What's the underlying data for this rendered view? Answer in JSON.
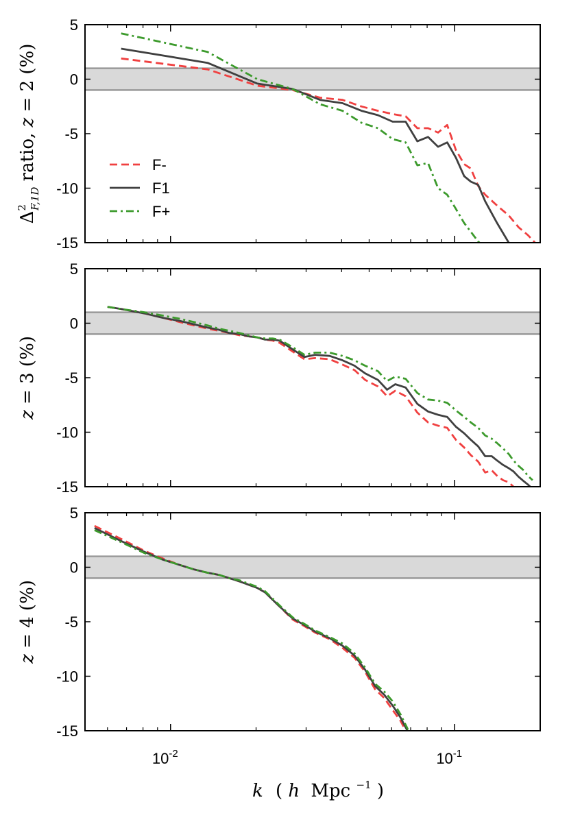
{
  "chart_data": {
    "type": "line",
    "xscale": "log",
    "xlim": [
      0.005,
      0.2
    ],
    "x_tick_labels": [
      {
        "value": 0.01,
        "base": "10",
        "exp": "-2"
      },
      {
        "value": 0.1,
        "base": "10",
        "exp": "-1"
      }
    ],
    "xlabel": {
      "k": "k",
      "paren_open": "(",
      "h": "h",
      "mpc": "Mpc",
      "exp": "−1",
      "paren_close": ")"
    },
    "band": [
      -1,
      1
    ],
    "band_color": "#d9d9d9",
    "band_edge_color": "#999999",
    "legend": {
      "position": "center-left (top panel)",
      "entries": [
        {
          "series": "F-",
          "label": "F-",
          "color": "#f04040",
          "dash": "dashed"
        },
        {
          "series": "F1",
          "label": "F1",
          "color": "#404040",
          "dash": "solid"
        },
        {
          "series": "F+",
          "label": "F+",
          "color": "#3c9a2c",
          "dash": "dashdot"
        }
      ]
    },
    "panels": [
      {
        "name": "z2",
        "ylim": [
          -15,
          5
        ],
        "y_ticks": [
          5,
          0,
          -5,
          -10,
          -15
        ],
        "y_tick_labels": [
          "5",
          "0",
          "-5",
          "-10",
          "-15"
        ],
        "ylabel": {
          "delta": "Δ",
          "sup": "2",
          "sub": "F,1D",
          "rest": " ratio, ",
          "z": "z",
          "eq": " = ",
          "zval": "2",
          "unit": "  (%)"
        },
        "series": [
          {
            "name": "F-",
            "color": "#f04040",
            "dash": "dashed",
            "x": [
              0.0067,
              0.0135,
              0.0202,
              0.0269,
              0.0336,
              0.0403,
              0.047,
              0.0537,
              0.0605,
              0.0672,
              0.0739,
              0.0806,
              0.0874,
              0.0941,
              0.101,
              0.108,
              0.114,
              0.121,
              0.128,
              0.141,
              0.155,
              0.168,
              0.181,
              0.195,
              0.2
            ],
            "values": [
              1.9,
              0.9,
              -0.6,
              -1.0,
              -1.7,
              -1.9,
              -2.5,
              -2.9,
              -3.2,
              -3.4,
              -4.5,
              -4.5,
              -4.9,
              -4.2,
              -6.5,
              -7.8,
              -8.2,
              -9.8,
              -10.6,
              -11.6,
              -12.5,
              -13.6,
              -14.3,
              -15.2,
              -15.5
            ]
          },
          {
            "name": "F1",
            "color": "#404040",
            "dash": "solid",
            "x": [
              0.0067,
              0.0135,
              0.0202,
              0.0269,
              0.0336,
              0.0403,
              0.047,
              0.0537,
              0.0605,
              0.0672,
              0.0739,
              0.0806,
              0.0874,
              0.0941,
              0.101,
              0.108,
              0.114,
              0.121,
              0.128,
              0.141,
              0.155,
              0.16
            ],
            "values": [
              2.8,
              1.5,
              -0.4,
              -0.9,
              -1.9,
              -2.2,
              -2.9,
              -3.3,
              -3.9,
              -3.9,
              -5.7,
              -5.3,
              -6.2,
              -5.8,
              -7.2,
              -8.9,
              -9.4,
              -9.7,
              -11.2,
              -13.2,
              -15.0,
              -15.5
            ]
          },
          {
            "name": "F+",
            "color": "#3c9a2c",
            "dash": "dashdot",
            "x": [
              0.0067,
              0.0135,
              0.0202,
              0.0269,
              0.0336,
              0.0403,
              0.047,
              0.0537,
              0.0605,
              0.0672,
              0.0739,
              0.0806,
              0.0874,
              0.0941,
              0.101,
              0.108,
              0.114,
              0.121,
              0.128,
              0.13
            ],
            "values": [
              4.2,
              2.5,
              0.0,
              -0.9,
              -2.3,
              -2.9,
              -4.0,
              -4.5,
              -5.5,
              -5.8,
              -7.9,
              -7.7,
              -10.0,
              -10.6,
              -11.9,
              -13.2,
              -14.0,
              -14.9,
              -15.4,
              -15.6
            ]
          }
        ]
      },
      {
        "name": "z3",
        "ylim": [
          -15,
          5
        ],
        "y_ticks": [
          5,
          0,
          -5,
          -10,
          -15
        ],
        "y_tick_labels": [
          "5",
          "0",
          "-5",
          "-10",
          "-15"
        ],
        "ylabel": {
          "z": "z",
          "eq": " = ",
          "zval": "3",
          "unit": "  (%)"
        },
        "series": [
          {
            "name": "F-",
            "color": "#f04040",
            "dash": "dashed",
            "x": [
              0.006,
              0.0067,
              0.0081,
              0.0094,
              0.0108,
              0.0121,
              0.0135,
              0.0148,
              0.0161,
              0.0175,
              0.0188,
              0.0202,
              0.0215,
              0.0229,
              0.0242,
              0.0269,
              0.0296,
              0.0323,
              0.0363,
              0.0403,
              0.0444,
              0.0484,
              0.0537,
              0.0578,
              0.0618,
              0.0672,
              0.0739,
              0.0806,
              0.0874,
              0.0941,
              0.101,
              0.108,
              0.114,
              0.121,
              0.128,
              0.135,
              0.141,
              0.148,
              0.155,
              0.161,
              0.168,
              0.175,
              0.181,
              0.188
            ],
            "values": [
              1.5,
              1.3,
              0.9,
              0.5,
              0.1,
              -0.2,
              -0.5,
              -0.7,
              -0.9,
              -1.1,
              -1.2,
              -1.3,
              -1.5,
              -1.6,
              -1.8,
              -2.6,
              -3.3,
              -3.2,
              -3.3,
              -3.8,
              -4.3,
              -5.2,
              -5.8,
              -6.7,
              -6.2,
              -6.7,
              -8.2,
              -9.1,
              -9.4,
              -9.6,
              -10.7,
              -11.4,
              -12.1,
              -12.7,
              -13.7,
              -13.5,
              -14.0,
              -14.4,
              -14.6,
              -15.0,
              -15.2,
              -15.5,
              -15.6,
              -15.8
            ]
          },
          {
            "name": "F1",
            "color": "#404040",
            "dash": "solid",
            "x": [
              0.006,
              0.0067,
              0.0081,
              0.0094,
              0.0108,
              0.0121,
              0.0135,
              0.0148,
              0.0161,
              0.0175,
              0.0188,
              0.0202,
              0.0215,
              0.0229,
              0.0242,
              0.0269,
              0.0296,
              0.0323,
              0.0363,
              0.0403,
              0.0444,
              0.0484,
              0.0537,
              0.0578,
              0.0618,
              0.0672,
              0.0739,
              0.0806,
              0.0874,
              0.0941,
              0.101,
              0.108,
              0.114,
              0.121,
              0.128,
              0.135,
              0.141,
              0.148,
              0.155,
              0.161,
              0.168,
              0.175,
              0.181,
              0.188
            ],
            "values": [
              1.5,
              1.3,
              0.9,
              0.5,
              0.2,
              -0.1,
              -0.4,
              -0.6,
              -0.9,
              -1.0,
              -1.2,
              -1.3,
              -1.5,
              -1.5,
              -1.6,
              -2.4,
              -3.1,
              -2.9,
              -3.0,
              -3.4,
              -3.9,
              -4.6,
              -5.2,
              -6.1,
              -5.6,
              -5.9,
              -7.4,
              -8.1,
              -8.4,
              -8.6,
              -9.5,
              -10.1,
              -10.7,
              -11.3,
              -12.2,
              -12.2,
              -12.6,
              -13.0,
              -13.3,
              -13.6,
              -14.1,
              -14.5,
              -14.8,
              -15.2
            ]
          },
          {
            "name": "F+",
            "color": "#3c9a2c",
            "dash": "dashdot",
            "x": [
              0.006,
              0.0067,
              0.0081,
              0.0094,
              0.0108,
              0.0121,
              0.0135,
              0.0148,
              0.0161,
              0.0175,
              0.0188,
              0.0202,
              0.0215,
              0.0229,
              0.0242,
              0.0269,
              0.0296,
              0.0323,
              0.0363,
              0.0403,
              0.0444,
              0.0484,
              0.0537,
              0.0578,
              0.0618,
              0.0672,
              0.0739,
              0.0806,
              0.0874,
              0.0941,
              0.101,
              0.108,
              0.114,
              0.121,
              0.128,
              0.135,
              0.141,
              0.148,
              0.155,
              0.161,
              0.168,
              0.175,
              0.181,
              0.188
            ],
            "values": [
              1.5,
              1.3,
              1.0,
              0.7,
              0.4,
              0.1,
              -0.2,
              -0.5,
              -0.7,
              -0.9,
              -1.1,
              -1.3,
              -1.4,
              -1.4,
              -1.5,
              -2.2,
              -2.9,
              -2.7,
              -2.7,
              -3.0,
              -3.4,
              -3.9,
              -4.4,
              -5.3,
              -4.9,
              -5.1,
              -6.4,
              -7.0,
              -7.1,
              -7.3,
              -8.0,
              -8.6,
              -9.1,
              -9.6,
              -10.3,
              -10.6,
              -11.0,
              -11.5,
              -12.0,
              -12.6,
              -13.1,
              -13.5,
              -14.0,
              -14.4
            ]
          }
        ]
      },
      {
        "name": "z4",
        "ylim": [
          -15,
          5
        ],
        "y_ticks": [
          5,
          0,
          -5,
          -10,
          -15
        ],
        "y_tick_labels": [
          "5",
          "0",
          "-5",
          "-10",
          "-15"
        ],
        "ylabel": {
          "z": "z",
          "eq": " = ",
          "zval": "4",
          "unit": "  (%)"
        },
        "series": [
          {
            "name": "F-",
            "color": "#f04040",
            "dash": "dashed",
            "x": [
              0.0054,
              0.0067,
              0.0081,
              0.0094,
              0.0108,
              0.0121,
              0.0135,
              0.0148,
              0.0161,
              0.0175,
              0.0188,
              0.0202,
              0.0215,
              0.0242,
              0.0269,
              0.0296,
              0.0323,
              0.0363,
              0.0403,
              0.0444,
              0.0484,
              0.0525,
              0.0565,
              0.0605,
              0.0645,
              0.0685
            ],
            "values": [
              3.8,
              2.6,
              1.5,
              0.8,
              0.2,
              -0.2,
              -0.5,
              -0.7,
              -1.0,
              -1.3,
              -1.6,
              -1.9,
              -2.3,
              -3.6,
              -4.8,
              -5.4,
              -6.0,
              -6.6,
              -7.4,
              -8.3,
              -9.6,
              -11.2,
              -12.0,
              -13.1,
              -14.1,
              -15.4
            ]
          },
          {
            "name": "F1",
            "color": "#404040",
            "dash": "solid",
            "x": [
              0.0054,
              0.0067,
              0.0081,
              0.0094,
              0.0108,
              0.0121,
              0.0135,
              0.0148,
              0.0161,
              0.0175,
              0.0188,
              0.0202,
              0.0215,
              0.0242,
              0.0269,
              0.0296,
              0.0323,
              0.0363,
              0.0403,
              0.0444,
              0.0484,
              0.0525,
              0.0565,
              0.0605,
              0.0645,
              0.0685
            ],
            "values": [
              3.6,
              2.4,
              1.4,
              0.7,
              0.2,
              -0.2,
              -0.5,
              -0.7,
              -1.0,
              -1.3,
              -1.6,
              -1.9,
              -2.3,
              -3.6,
              -4.7,
              -5.3,
              -5.9,
              -6.5,
              -7.2,
              -8.1,
              -9.4,
              -10.9,
              -11.7,
              -12.7,
              -13.8,
              -15.1
            ]
          },
          {
            "name": "F+",
            "color": "#3c9a2c",
            "dash": "dashdot",
            "x": [
              0.0054,
              0.0067,
              0.0081,
              0.0094,
              0.0108,
              0.0121,
              0.0135,
              0.0148,
              0.0161,
              0.0175,
              0.0188,
              0.0202,
              0.0215,
              0.0242,
              0.0269,
              0.0296,
              0.0323,
              0.0363,
              0.0403,
              0.0444,
              0.0484,
              0.0525,
              0.0565,
              0.0605,
              0.0645,
              0.0685
            ],
            "values": [
              3.4,
              2.3,
              1.3,
              0.7,
              0.2,
              -0.2,
              -0.5,
              -0.7,
              -1.0,
              -1.2,
              -1.5,
              -1.8,
              -2.2,
              -3.5,
              -4.6,
              -5.2,
              -5.8,
              -6.4,
              -7.0,
              -7.9,
              -9.2,
              -10.7,
              -11.4,
              -12.3,
              -13.5,
              -14.9
            ]
          }
        ]
      }
    ]
  }
}
